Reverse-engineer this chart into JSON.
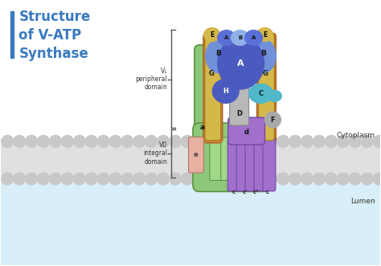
{
  "title": "Structure\nof V-ATP\nSynthase",
  "bg_color": "#ffffff",
  "lumen_color": "#d8eef8",
  "cytoplasm_label": "Cytoplasm",
  "lumen_label": "Lumen",
  "v1_label": "V₁\nperipheral\ndomain",
  "v0_label": "V0\nintegral\ndomain",
  "colors": {
    "green_body": "#8dc87a",
    "green_edge": "#5a9040",
    "orange_stalk": "#d4843a",
    "yellow_E": "#d4b84a",
    "blue_dark": "#4a5abf",
    "blue_med": "#5a70d8",
    "blue_light": "#7090d8",
    "blue_pale": "#90b0e8",
    "teal_C": "#50b8c8",
    "purple_light": "#a070cc",
    "purple_dark": "#7744aa",
    "gray_stalk": "#b8b8b8",
    "gray_F": "#a8a8a8",
    "pink_e": "#e8b0a0",
    "blue_title": "#3a7abf",
    "mem_gray": "#c8c8c8",
    "mem_bg": "#e0e0e0"
  }
}
